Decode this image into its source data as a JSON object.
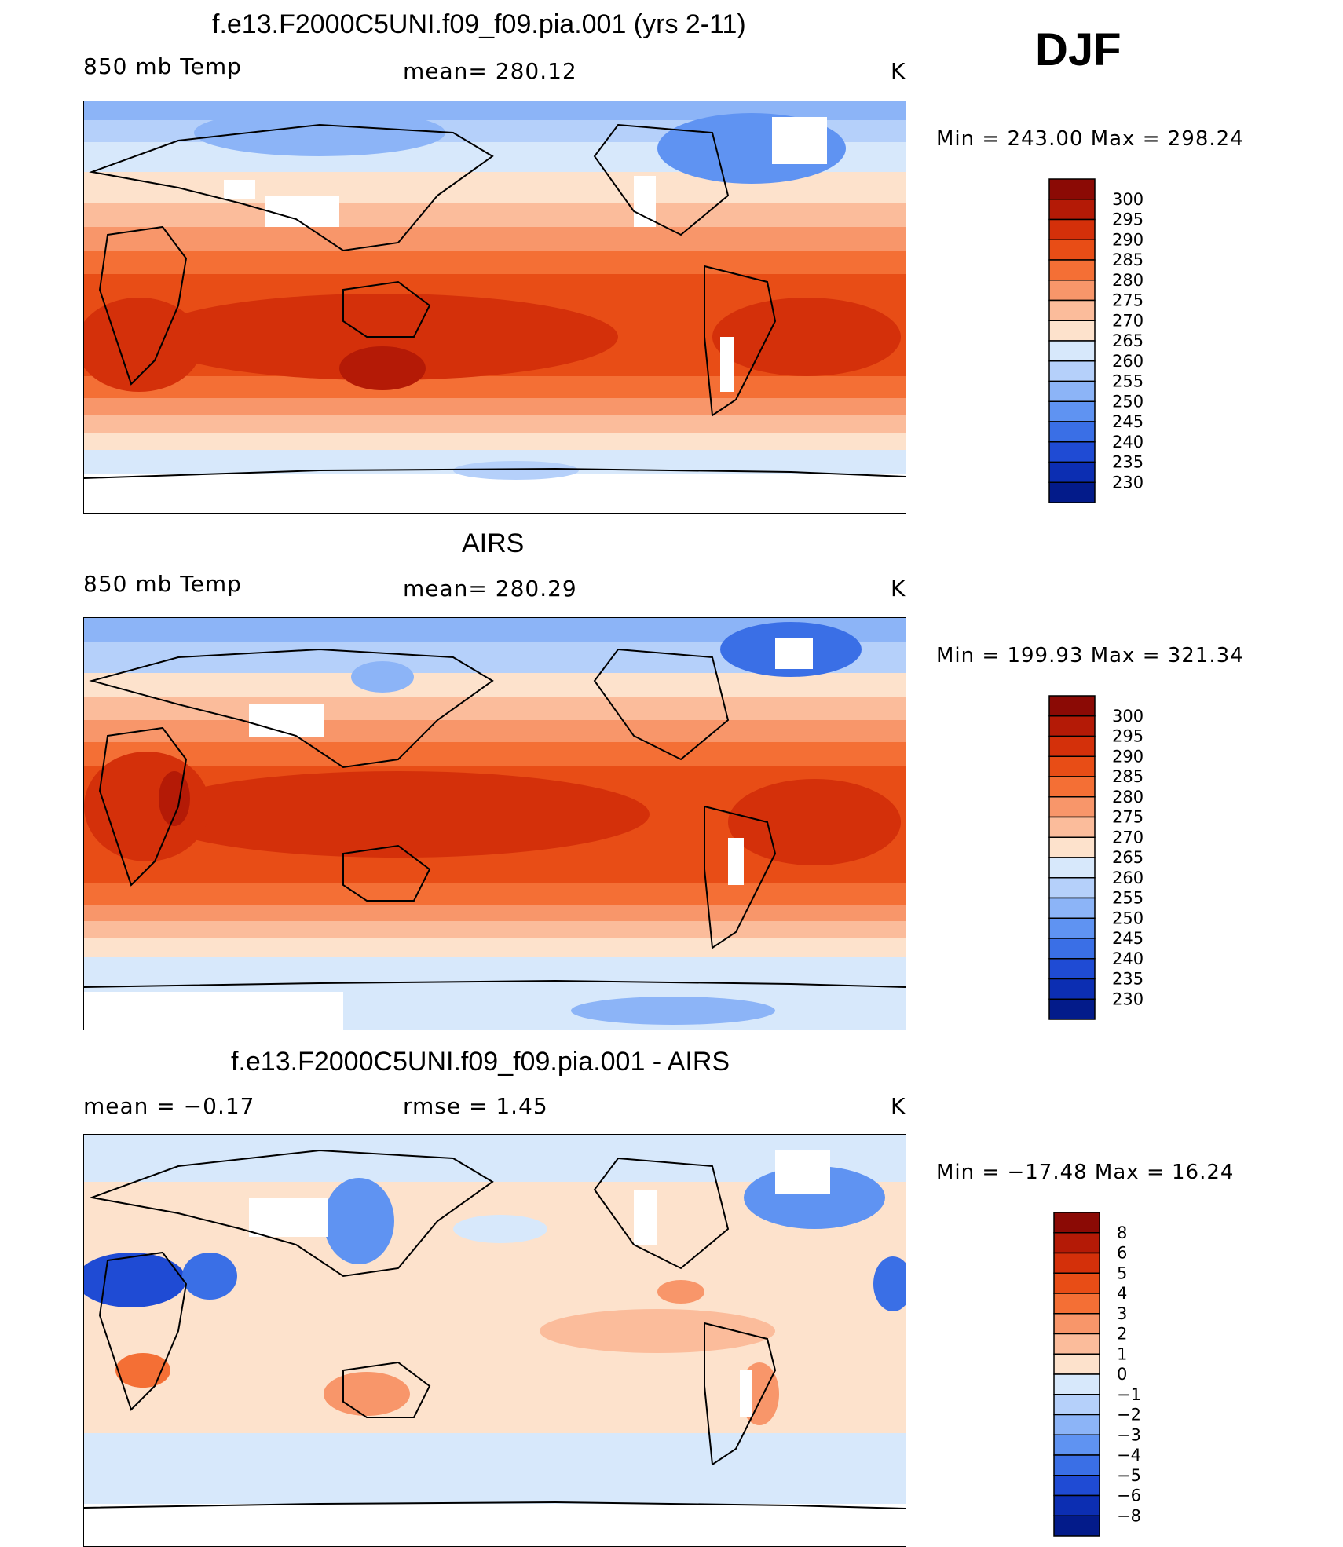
{
  "season": "DJF",
  "panels": [
    {
      "title": "f.e13.F2000C5UNI.f09_f09.pia.001 (yrs 2-11)",
      "left_label": "850 mb Temp",
      "center_label": "mean=  280.12",
      "units": "K",
      "minmax": "Min  =  243.00  Max  =  298.24",
      "kind": "abs"
    },
    {
      "title": "AIRS",
      "left_label": "850 mb Temp",
      "center_label": "mean=  280.29",
      "units": "K",
      "minmax": "Min  =  199.93  Max  =  321.34",
      "kind": "abs"
    },
    {
      "title": "f.e13.F2000C5UNI.f09_f09.pia.001 - AIRS",
      "left_label": "mean  =    −0.17",
      "center_label": "rmse  =     1.45",
      "units": "K",
      "minmax": "Min  =  −17.48  Max  =    16.24",
      "kind": "diff"
    }
  ],
  "colorbar_abs": {
    "labels": [
      "300",
      "295",
      "290",
      "285",
      "280",
      "275",
      "270",
      "265",
      "260",
      "255",
      "250",
      "245",
      "240",
      "235",
      "230"
    ],
    "colors": [
      "#8b0a05",
      "#b41a06",
      "#d4300a",
      "#e84d16",
      "#f46f35",
      "#f8966a",
      "#fbbc9b",
      "#fde2cc",
      "#d7e8fb",
      "#b5d0fa",
      "#8cb4f7",
      "#5f93f2",
      "#3a6fe6",
      "#1f4bd4",
      "#0c2eb2",
      "#031b8a"
    ]
  },
  "colorbar_diff": {
    "labels": [
      "8",
      "6",
      "5",
      "4",
      "3",
      "2",
      "1",
      "0",
      "−1",
      "−2",
      "−3",
      "−4",
      "−5",
      "−6",
      "−8"
    ],
    "colors": [
      "#8b0a05",
      "#b41a06",
      "#d4300a",
      "#e84d16",
      "#f46f35",
      "#f8966a",
      "#fbbc9b",
      "#fde2cc",
      "#d7e8fb",
      "#b5d0fa",
      "#8cb4f7",
      "#5f93f2",
      "#3a6fe6",
      "#1f4bd4",
      "#0c2eb2",
      "#031b8a"
    ]
  }
}
